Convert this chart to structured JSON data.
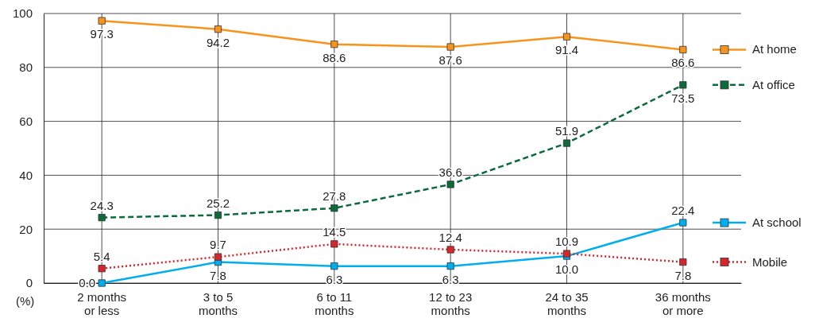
{
  "chart_data": {
    "type": "line",
    "ylabel": "(%)",
    "categories": [
      "2 months\nor less",
      "3 to 5\nmonths",
      "6 to 11\nmonths",
      "12 to 23\nmonths",
      "24 to 35\nmonths",
      "36 months\nor more"
    ],
    "ylim": [
      0,
      100
    ],
    "yticks": [
      0,
      20,
      40,
      60,
      80,
      100
    ],
    "grid": true,
    "legend": "right",
    "marker": "square",
    "series": [
      {
        "name": "At home",
        "color": "#f7941d",
        "line_style": "solid",
        "values": [
          97.3,
          94.2,
          88.6,
          87.6,
          91.4,
          86.6
        ],
        "value_labels": [
          "97.3",
          "94.2",
          "88.6",
          "87.6",
          "91.4",
          "86.6"
        ]
      },
      {
        "name": "At office",
        "color": "#0b6b3a",
        "line_style": "dashed",
        "values": [
          24.3,
          25.2,
          27.8,
          36.6,
          51.9,
          73.5
        ],
        "value_labels": [
          "24.3",
          "25.2",
          "27.8",
          "36.6",
          "51.9",
          "73.5"
        ]
      },
      {
        "name": "At school",
        "color": "#00aeef",
        "line_style": "solid",
        "values": [
          0.0,
          7.8,
          6.3,
          6.3,
          10.0,
          22.4
        ],
        "value_labels": [
          "0.0",
          "7.8",
          "6.3",
          "6.3",
          "10.0",
          "22.4"
        ]
      },
      {
        "name": "Mobile",
        "color": "#d7262b",
        "line_style": "dotted",
        "values": [
          5.4,
          9.7,
          14.5,
          12.4,
          10.9,
          7.8
        ],
        "value_labels": [
          "5.4",
          "9.7",
          "14.5",
          "12.4",
          "10.9",
          "7.8"
        ]
      }
    ]
  }
}
